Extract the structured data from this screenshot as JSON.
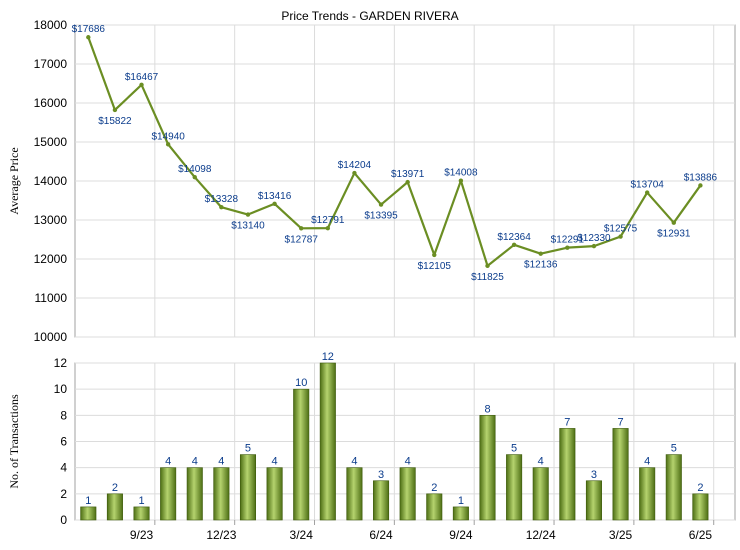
{
  "chart_data": [
    {
      "type": "line",
      "title": "Price Trends - GARDEN RIVERA",
      "ylabel": "Average Price",
      "ylim": [
        10000,
        18000
      ],
      "yticks": [
        10000,
        11000,
        12000,
        13000,
        14000,
        15000,
        16000,
        17000,
        18000
      ],
      "x_tick_labels": [
        "9/23",
        "12/23",
        "3/24",
        "6/24",
        "9/24",
        "12/24",
        "3/25",
        "6/25"
      ],
      "grid": true,
      "series": [
        {
          "color": "#6b8e23",
          "values": [
            17686,
            15822,
            16467,
            14940,
            14098,
            13328,
            13140,
            13416,
            12787,
            12791,
            14204,
            13395,
            13971,
            12105,
            14008,
            11825,
            12364,
            12136,
            12291,
            12330,
            12575,
            13704,
            12931,
            13886
          ],
          "labels": [
            "$17686",
            "$15822",
            "$16467",
            "$14940",
            "$14098",
            "$13328",
            "$13140",
            "$13416",
            "$12787",
            "$12791",
            "$14204",
            "$13395",
            "$13971",
            "$12105",
            "$14008",
            "$11825",
            "$12364",
            "$12136",
            "$12291",
            "$12330",
            "$12575",
            "$13704",
            "$12931",
            "$13886"
          ]
        }
      ]
    },
    {
      "type": "bar",
      "ylabel": "No. of Transactions",
      "ylim": [
        0,
        12
      ],
      "yticks": [
        0,
        2,
        4,
        6,
        8,
        10,
        12
      ],
      "x_tick_labels": [
        "9/23",
        "12/23",
        "3/24",
        "6/24",
        "9/24",
        "12/24",
        "3/25",
        "6/25"
      ],
      "grid": true,
      "series": [
        {
          "color": "#6b8e23",
          "values": [
            1,
            2,
            1,
            4,
            4,
            4,
            5,
            4,
            10,
            12,
            4,
            3,
            4,
            2,
            1,
            8,
            5,
            4,
            7,
            3,
            7,
            4,
            5,
            2
          ]
        }
      ]
    }
  ]
}
